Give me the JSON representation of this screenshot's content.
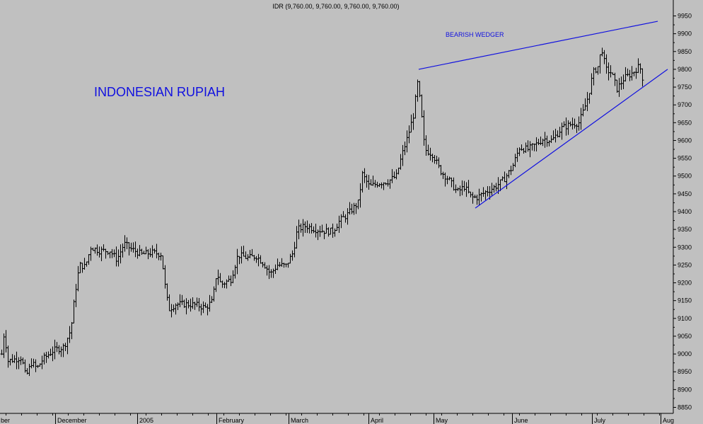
{
  "chart_data": {
    "type": "ohlc",
    "header": "IDR (9,760.00, 9,760.00, 9,760.00, 9,760.00)",
    "title": "INDONESIAN RUPIAH",
    "annotations": [
      {
        "text": "BEARISH WEDGER"
      }
    ],
    "y_axis": {
      "position": "right",
      "min": 8850,
      "max": 9950,
      "ticks": [
        8850,
        8900,
        8950,
        9000,
        9050,
        9100,
        9150,
        9200,
        9250,
        9300,
        9350,
        9400,
        9450,
        9500,
        9550,
        9600,
        9650,
        9700,
        9750,
        9800,
        9850,
        9900,
        9950
      ]
    },
    "x_axis": {
      "labels": [
        "ber",
        "December",
        "2005",
        "February",
        "March",
        "April",
        "May",
        "June",
        "July",
        "Aug"
      ]
    },
    "trendlines": [
      {
        "name": "upper",
        "from": {
          "day": 592,
          "value": 9800
        },
        "to": {
          "day": 930,
          "value": 9935
        }
      },
      {
        "name": "lower",
        "from": {
          "day": 672,
          "value": 9410
        },
        "to": {
          "day": 944,
          "value": 9800
        }
      }
    ],
    "anchors": [
      [
        2,
        9000
      ],
      [
        6,
        9070
      ],
      [
        10,
        8980
      ],
      [
        30,
        8990
      ],
      [
        36,
        8935
      ],
      [
        44,
        8975
      ],
      [
        52,
        8960
      ],
      [
        60,
        8985
      ],
      [
        75,
        9010
      ],
      [
        90,
        9020
      ],
      [
        100,
        9070
      ],
      [
        106,
        9175
      ],
      [
        112,
        9250
      ],
      [
        120,
        9245
      ],
      [
        128,
        9300
      ],
      [
        140,
        9290
      ],
      [
        155,
        9290
      ],
      [
        165,
        9265
      ],
      [
        175,
        9310
      ],
      [
        185,
        9295
      ],
      [
        200,
        9280
      ],
      [
        215,
        9285
      ],
      [
        228,
        9280
      ],
      [
        232,
        9205
      ],
      [
        238,
        9125
      ],
      [
        248,
        9140
      ],
      [
        262,
        9140
      ],
      [
        276,
        9138
      ],
      [
        290,
        9130
      ],
      [
        300,
        9148
      ],
      [
        306,
        9230
      ],
      [
        312,
        9195
      ],
      [
        326,
        9210
      ],
      [
        336,
        9278
      ],
      [
        350,
        9270
      ],
      [
        362,
        9275
      ],
      [
        372,
        9255
      ],
      [
        382,
        9225
      ],
      [
        392,
        9250
      ],
      [
        404,
        9248
      ],
      [
        414,
        9285
      ],
      [
        420,
        9350
      ],
      [
        432,
        9360
      ],
      [
        446,
        9350
      ],
      [
        460,
        9345
      ],
      [
        470,
        9345
      ],
      [
        480,
        9375
      ],
      [
        490,
        9390
      ],
      [
        506,
        9425
      ],
      [
        512,
        9505
      ],
      [
        522,
        9470
      ],
      [
        534,
        9480
      ],
      [
        548,
        9485
      ],
      [
        560,
        9500
      ],
      [
        568,
        9560
      ],
      [
        576,
        9610
      ],
      [
        584,
        9670
      ],
      [
        590,
        9760
      ],
      [
        594,
        9705
      ],
      [
        600,
        9575
      ],
      [
        612,
        9560
      ],
      [
        622,
        9515
      ],
      [
        634,
        9490
      ],
      [
        646,
        9455
      ],
      [
        656,
        9470
      ],
      [
        666,
        9440
      ],
      [
        674,
        9440
      ],
      [
        686,
        9455
      ],
      [
        700,
        9470
      ],
      [
        712,
        9490
      ],
      [
        724,
        9525
      ],
      [
        734,
        9580
      ],
      [
        746,
        9575
      ],
      [
        758,
        9590
      ],
      [
        768,
        9605
      ],
      [
        780,
        9600
      ],
      [
        794,
        9635
      ],
      [
        806,
        9645
      ],
      [
        818,
        9650
      ],
      [
        826,
        9690
      ],
      [
        832,
        9730
      ],
      [
        838,
        9790
      ],
      [
        846,
        9810
      ],
      [
        850,
        9865
      ],
      [
        856,
        9800
      ],
      [
        864,
        9790
      ],
      [
        872,
        9745
      ],
      [
        882,
        9775
      ],
      [
        894,
        9790
      ],
      [
        904,
        9810
      ],
      [
        910,
        9760
      ]
    ]
  }
}
